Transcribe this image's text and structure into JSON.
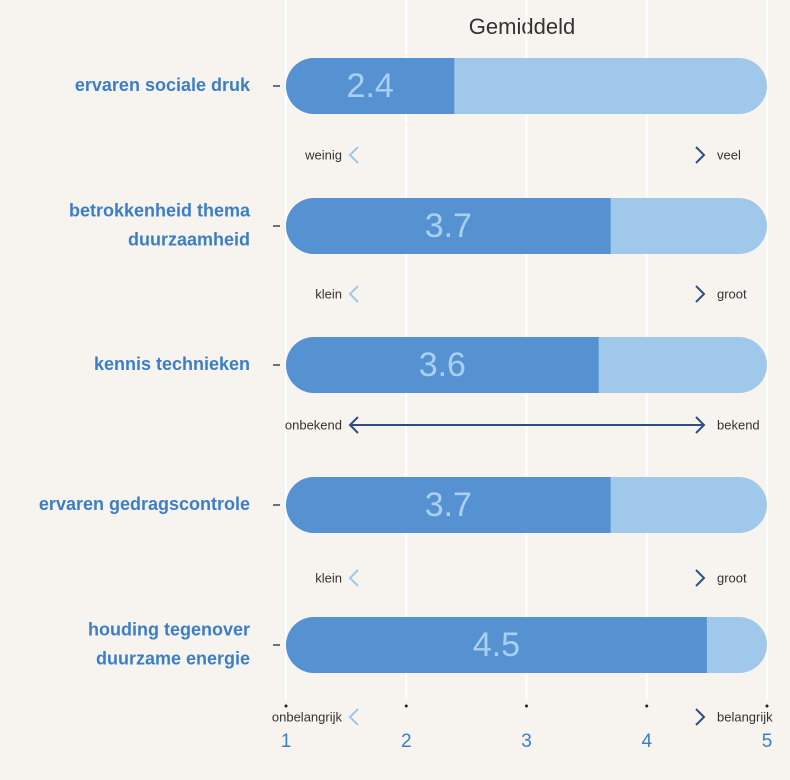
{
  "chart_data": {
    "type": "bar",
    "title": "Gemiddeld",
    "categories": [
      [
        "ervaren sociale druk"
      ],
      [
        "betrokkenheid thema",
        "duurzaamheid"
      ],
      [
        "kennis technieken"
      ],
      [
        "ervaren gedragscontrole"
      ],
      [
        "houding tegenover",
        "duurzame energie"
      ]
    ],
    "values": [
      2.4,
      3.7,
      3.6,
      3.7,
      4.5
    ],
    "scale_low": [
      "weinig",
      "klein",
      "onbekend",
      "klein",
      "onbelangrijk"
    ],
    "scale_high": [
      "veel",
      "groot",
      "bekend",
      "groot",
      "belangrijk"
    ],
    "color": "#5692d1",
    "track_color": "#9fc8eb",
    "xlim": [
      1,
      5
    ],
    "xticks": [
      1,
      2,
      3,
      4,
      5
    ],
    "grid": true
  }
}
